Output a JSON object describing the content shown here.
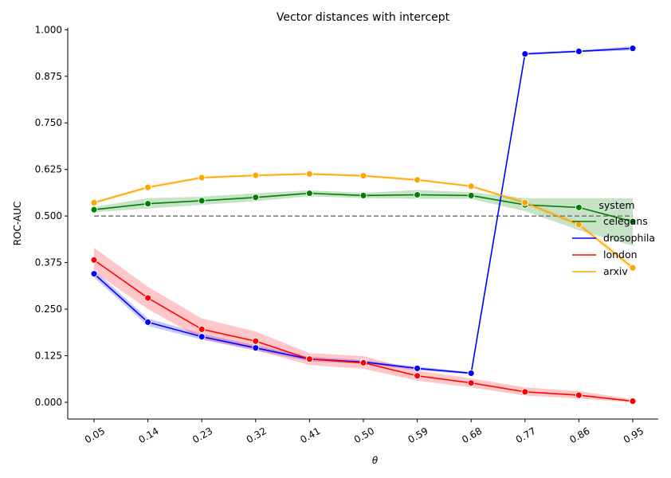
{
  "chart_data": {
    "type": "line",
    "title": "Vector distances with intercept",
    "xlabel": "θ",
    "ylabel": "ROC-AUC",
    "x": [
      "0.05",
      "0.14",
      "0.23",
      "0.32",
      "0.41",
      "0.50",
      "0.59",
      "0.68",
      "0.77",
      "0.86",
      "0.95"
    ],
    "yticks": [
      "0.000",
      "0.125",
      "0.250",
      "0.375",
      "0.500",
      "0.625",
      "0.750",
      "0.875",
      "1.000"
    ],
    "ylim": [
      -0.045,
      1.005
    ],
    "reference_line": {
      "y": 0.5,
      "color": "#808080",
      "style": "dashed"
    },
    "legend": {
      "title": "system",
      "position": "right"
    },
    "grid": false,
    "series": [
      {
        "name": "celegans",
        "color": "#008000",
        "values": [
          0.517,
          0.533,
          0.541,
          0.55,
          0.561,
          0.555,
          0.557,
          0.555,
          0.53,
          0.523,
          0.485
        ],
        "lower": [
          0.51,
          0.52,
          0.53,
          0.54,
          0.553,
          0.548,
          0.546,
          0.546,
          0.513,
          0.462,
          0.42
        ],
        "upper": [
          0.524,
          0.548,
          0.552,
          0.561,
          0.569,
          0.562,
          0.57,
          0.564,
          0.548,
          0.548,
          0.548
        ]
      },
      {
        "name": "drosophila",
        "color": "#0000ff",
        "values": [
          0.345,
          0.215,
          0.176,
          0.146,
          0.116,
          0.108,
          0.091,
          0.078,
          0.935,
          0.942,
          0.95
        ],
        "lower": [
          0.335,
          0.205,
          0.168,
          0.139,
          0.11,
          0.103,
          0.086,
          0.075,
          0.932,
          0.94,
          0.944
        ],
        "upper": [
          0.355,
          0.225,
          0.184,
          0.153,
          0.122,
          0.113,
          0.096,
          0.081,
          0.939,
          0.945,
          0.956
        ]
      },
      {
        "name": "london",
        "color": "#ff0000",
        "values": [
          0.382,
          0.28,
          0.196,
          0.164,
          0.116,
          0.106,
          0.071,
          0.052,
          0.028,
          0.019,
          0.003
        ],
        "lower": [
          0.35,
          0.25,
          0.17,
          0.14,
          0.1,
          0.09,
          0.058,
          0.04,
          0.018,
          0.01,
          0.0
        ],
        "upper": [
          0.415,
          0.31,
          0.225,
          0.19,
          0.132,
          0.124,
          0.085,
          0.064,
          0.04,
          0.03,
          0.008
        ]
      },
      {
        "name": "arxiv",
        "color": "#ffa500",
        "values": [
          0.536,
          0.577,
          0.603,
          0.609,
          0.613,
          0.608,
          0.597,
          0.58,
          0.536,
          0.477,
          0.361
        ],
        "lower": [
          0.532,
          0.572,
          0.599,
          0.605,
          0.609,
          0.604,
          0.593,
          0.576,
          0.531,
          0.47,
          0.353
        ],
        "upper": [
          0.54,
          0.582,
          0.607,
          0.613,
          0.617,
          0.612,
          0.601,
          0.584,
          0.541,
          0.484,
          0.369
        ]
      }
    ]
  }
}
